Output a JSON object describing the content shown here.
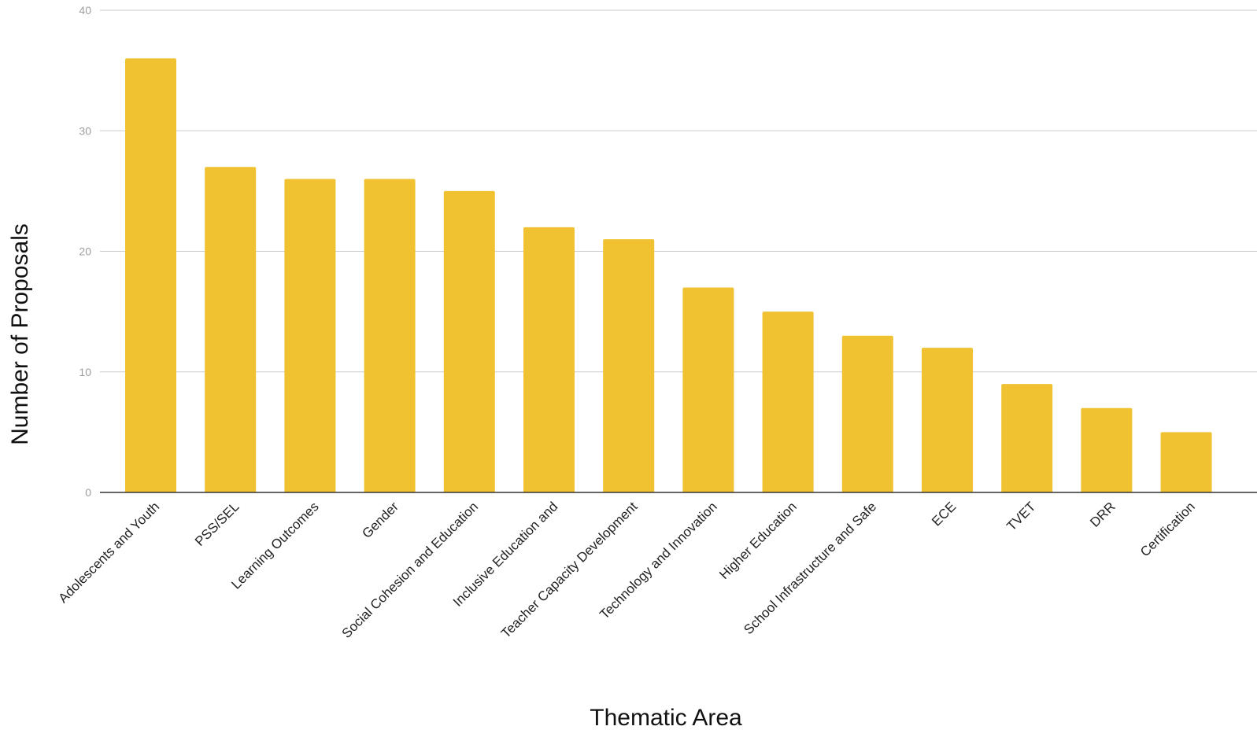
{
  "chart_data": {
    "type": "bar",
    "title": "",
    "xlabel": "Thematic Area",
    "ylabel": "Number of Proposals",
    "ylim": [
      0,
      40
    ],
    "yticks": [
      0,
      10,
      20,
      30,
      40
    ],
    "grid": true,
    "legend": "none",
    "bar_color": "#F0C232",
    "categories": [
      "Adolescents and Youth",
      "PSS/SEL",
      "Learning Outcomes",
      "Gender",
      "Social Cohesion and Education",
      "Inclusive Education and",
      "Teacher Capacity Development",
      "Technology and Innovation",
      "Higher Education",
      "School Infrastructure and Safe",
      "ECE",
      "TVET",
      "DRR",
      "Certification"
    ],
    "values": [
      36,
      27,
      26,
      26,
      25,
      22,
      21,
      17,
      15,
      13,
      12,
      9,
      7,
      5
    ]
  }
}
